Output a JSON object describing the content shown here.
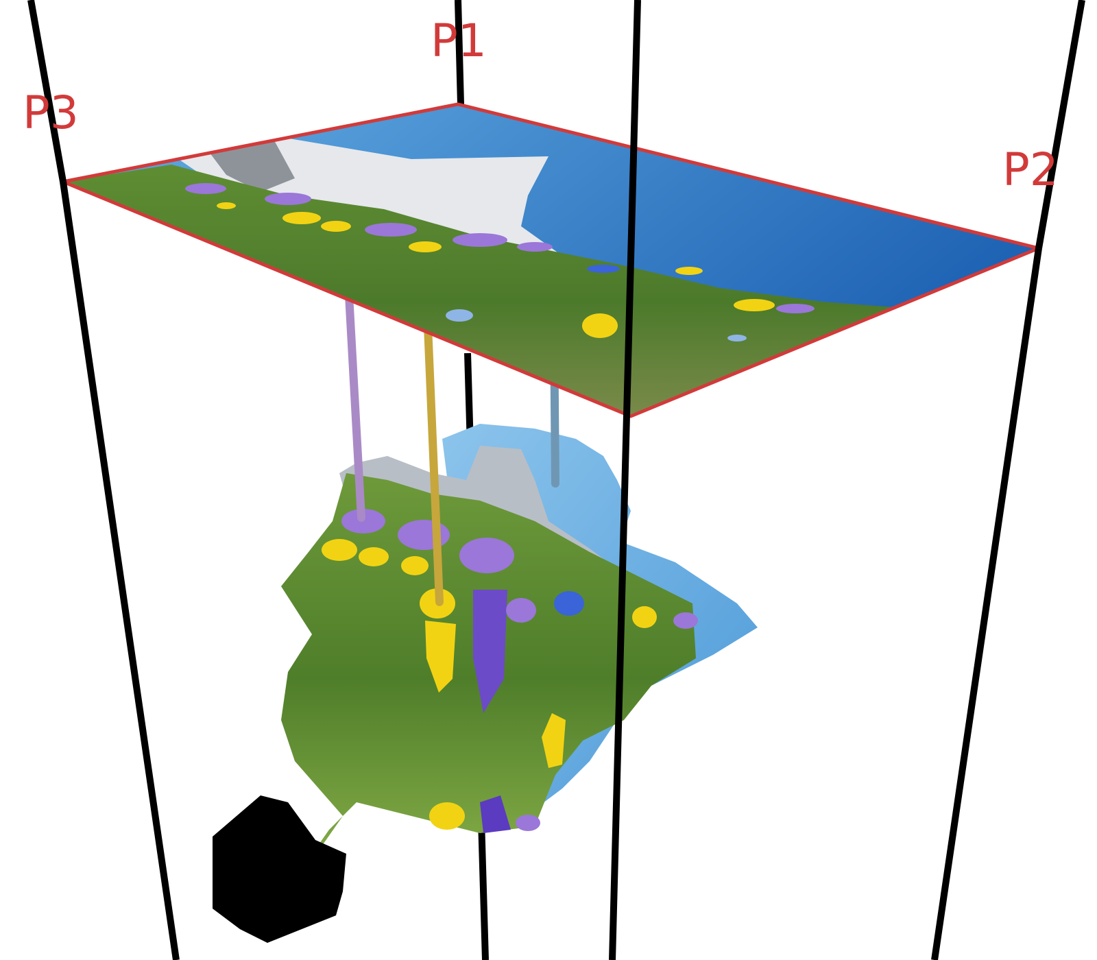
{
  "diagram": {
    "corner_labels": {
      "p1": "P1",
      "p2": "P2",
      "p3": "P3"
    },
    "colors": {
      "outline": "#d23a3a",
      "frustum_line": "#000000",
      "sky_top": "#1f63b4",
      "sky_bottom": "#64aee4",
      "grass_dark": "#3f6d24",
      "grass_light": "#8fb84a",
      "flower_yellow": "#f2d313",
      "flower_purple": "#9a77d8",
      "flower_blue": "#3a64d8",
      "ray_purple": "#a98ac6",
      "ray_yellow": "#c7a63c",
      "ray_blue": "#6f97b3",
      "object_shadow": "#000000"
    }
  }
}
